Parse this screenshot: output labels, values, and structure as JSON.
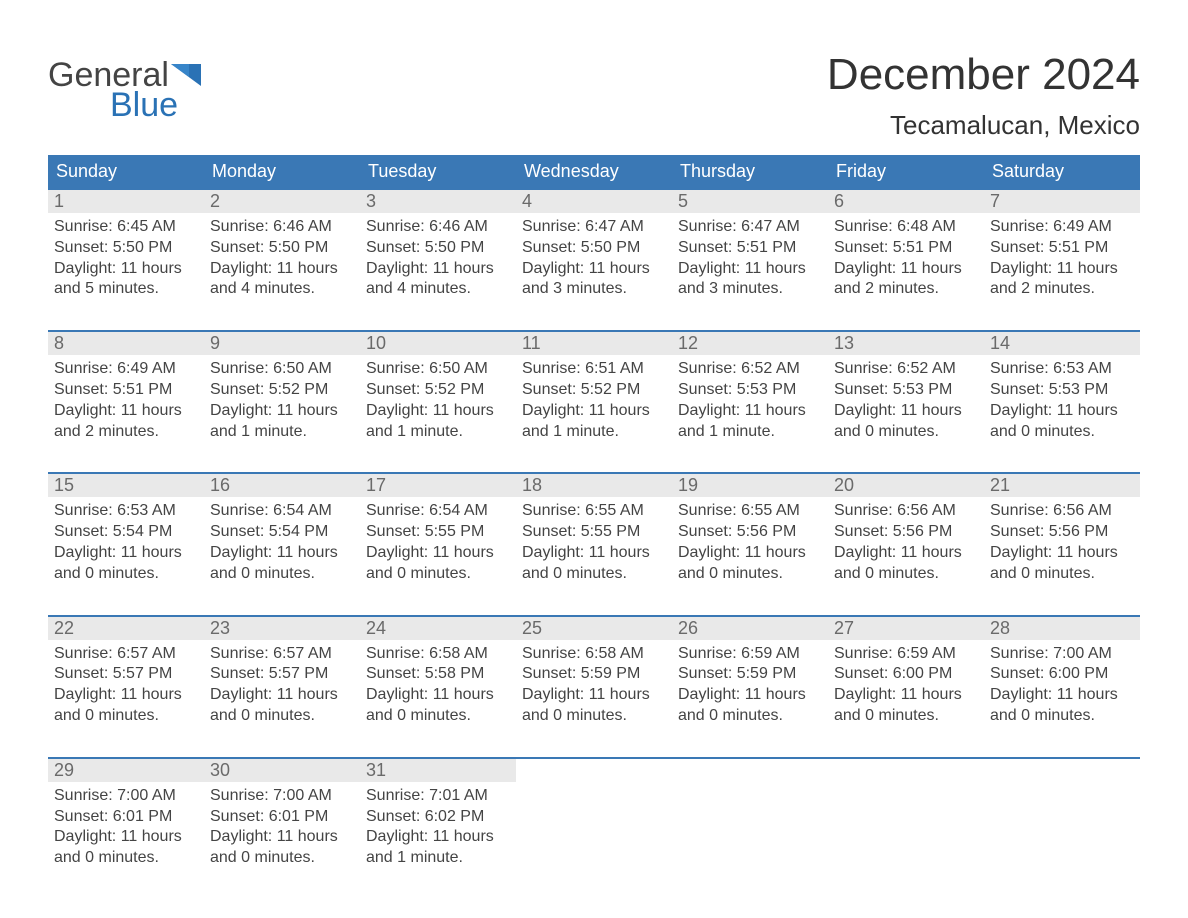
{
  "logo": {
    "line1": "General",
    "line2": "Blue",
    "brand_color": "#2a72b5",
    "text_color": "#444444"
  },
  "title": "December 2024",
  "location": "Tecamalucan, Mexico",
  "colors": {
    "header_bg": "#3a78b5",
    "header_text": "#ffffff",
    "daynum_bg": "#e9e9e9",
    "daynum_text": "#6a6a6a",
    "body_text": "#444444",
    "week_border": "#3a78b5",
    "page_bg": "#ffffff"
  },
  "dow": [
    "Sunday",
    "Monday",
    "Tuesday",
    "Wednesday",
    "Thursday",
    "Friday",
    "Saturday"
  ],
  "weeks": [
    [
      {
        "n": "1",
        "sr": "Sunrise: 6:45 AM",
        "ss": "Sunset: 5:50 PM",
        "d1": "Daylight: 11 hours",
        "d2": "and 5 minutes."
      },
      {
        "n": "2",
        "sr": "Sunrise: 6:46 AM",
        "ss": "Sunset: 5:50 PM",
        "d1": "Daylight: 11 hours",
        "d2": "and 4 minutes."
      },
      {
        "n": "3",
        "sr": "Sunrise: 6:46 AM",
        "ss": "Sunset: 5:50 PM",
        "d1": "Daylight: 11 hours",
        "d2": "and 4 minutes."
      },
      {
        "n": "4",
        "sr": "Sunrise: 6:47 AM",
        "ss": "Sunset: 5:50 PM",
        "d1": "Daylight: 11 hours",
        "d2": "and 3 minutes."
      },
      {
        "n": "5",
        "sr": "Sunrise: 6:47 AM",
        "ss": "Sunset: 5:51 PM",
        "d1": "Daylight: 11 hours",
        "d2": "and 3 minutes."
      },
      {
        "n": "6",
        "sr": "Sunrise: 6:48 AM",
        "ss": "Sunset: 5:51 PM",
        "d1": "Daylight: 11 hours",
        "d2": "and 2 minutes."
      },
      {
        "n": "7",
        "sr": "Sunrise: 6:49 AM",
        "ss": "Sunset: 5:51 PM",
        "d1": "Daylight: 11 hours",
        "d2": "and 2 minutes."
      }
    ],
    [
      {
        "n": "8",
        "sr": "Sunrise: 6:49 AM",
        "ss": "Sunset: 5:51 PM",
        "d1": "Daylight: 11 hours",
        "d2": "and 2 minutes."
      },
      {
        "n": "9",
        "sr": "Sunrise: 6:50 AM",
        "ss": "Sunset: 5:52 PM",
        "d1": "Daylight: 11 hours",
        "d2": "and 1 minute."
      },
      {
        "n": "10",
        "sr": "Sunrise: 6:50 AM",
        "ss": "Sunset: 5:52 PM",
        "d1": "Daylight: 11 hours",
        "d2": "and 1 minute."
      },
      {
        "n": "11",
        "sr": "Sunrise: 6:51 AM",
        "ss": "Sunset: 5:52 PM",
        "d1": "Daylight: 11 hours",
        "d2": "and 1 minute."
      },
      {
        "n": "12",
        "sr": "Sunrise: 6:52 AM",
        "ss": "Sunset: 5:53 PM",
        "d1": "Daylight: 11 hours",
        "d2": "and 1 minute."
      },
      {
        "n": "13",
        "sr": "Sunrise: 6:52 AM",
        "ss": "Sunset: 5:53 PM",
        "d1": "Daylight: 11 hours",
        "d2": "and 0 minutes."
      },
      {
        "n": "14",
        "sr": "Sunrise: 6:53 AM",
        "ss": "Sunset: 5:53 PM",
        "d1": "Daylight: 11 hours",
        "d2": "and 0 minutes."
      }
    ],
    [
      {
        "n": "15",
        "sr": "Sunrise: 6:53 AM",
        "ss": "Sunset: 5:54 PM",
        "d1": "Daylight: 11 hours",
        "d2": "and 0 minutes."
      },
      {
        "n": "16",
        "sr": "Sunrise: 6:54 AM",
        "ss": "Sunset: 5:54 PM",
        "d1": "Daylight: 11 hours",
        "d2": "and 0 minutes."
      },
      {
        "n": "17",
        "sr": "Sunrise: 6:54 AM",
        "ss": "Sunset: 5:55 PM",
        "d1": "Daylight: 11 hours",
        "d2": "and 0 minutes."
      },
      {
        "n": "18",
        "sr": "Sunrise: 6:55 AM",
        "ss": "Sunset: 5:55 PM",
        "d1": "Daylight: 11 hours",
        "d2": "and 0 minutes."
      },
      {
        "n": "19",
        "sr": "Sunrise: 6:55 AM",
        "ss": "Sunset: 5:56 PM",
        "d1": "Daylight: 11 hours",
        "d2": "and 0 minutes."
      },
      {
        "n": "20",
        "sr": "Sunrise: 6:56 AM",
        "ss": "Sunset: 5:56 PM",
        "d1": "Daylight: 11 hours",
        "d2": "and 0 minutes."
      },
      {
        "n": "21",
        "sr": "Sunrise: 6:56 AM",
        "ss": "Sunset: 5:56 PM",
        "d1": "Daylight: 11 hours",
        "d2": "and 0 minutes."
      }
    ],
    [
      {
        "n": "22",
        "sr": "Sunrise: 6:57 AM",
        "ss": "Sunset: 5:57 PM",
        "d1": "Daylight: 11 hours",
        "d2": "and 0 minutes."
      },
      {
        "n": "23",
        "sr": "Sunrise: 6:57 AM",
        "ss": "Sunset: 5:57 PM",
        "d1": "Daylight: 11 hours",
        "d2": "and 0 minutes."
      },
      {
        "n": "24",
        "sr": "Sunrise: 6:58 AM",
        "ss": "Sunset: 5:58 PM",
        "d1": "Daylight: 11 hours",
        "d2": "and 0 minutes."
      },
      {
        "n": "25",
        "sr": "Sunrise: 6:58 AM",
        "ss": "Sunset: 5:59 PM",
        "d1": "Daylight: 11 hours",
        "d2": "and 0 minutes."
      },
      {
        "n": "26",
        "sr": "Sunrise: 6:59 AM",
        "ss": "Sunset: 5:59 PM",
        "d1": "Daylight: 11 hours",
        "d2": "and 0 minutes."
      },
      {
        "n": "27",
        "sr": "Sunrise: 6:59 AM",
        "ss": "Sunset: 6:00 PM",
        "d1": "Daylight: 11 hours",
        "d2": "and 0 minutes."
      },
      {
        "n": "28",
        "sr": "Sunrise: 7:00 AM",
        "ss": "Sunset: 6:00 PM",
        "d1": "Daylight: 11 hours",
        "d2": "and 0 minutes."
      }
    ],
    [
      {
        "n": "29",
        "sr": "Sunrise: 7:00 AM",
        "ss": "Sunset: 6:01 PM",
        "d1": "Daylight: 11 hours",
        "d2": "and 0 minutes."
      },
      {
        "n": "30",
        "sr": "Sunrise: 7:00 AM",
        "ss": "Sunset: 6:01 PM",
        "d1": "Daylight: 11 hours",
        "d2": "and 0 minutes."
      },
      {
        "n": "31",
        "sr": "Sunrise: 7:01 AM",
        "ss": "Sunset: 6:02 PM",
        "d1": "Daylight: 11 hours",
        "d2": "and 1 minute."
      },
      null,
      null,
      null,
      null
    ]
  ]
}
